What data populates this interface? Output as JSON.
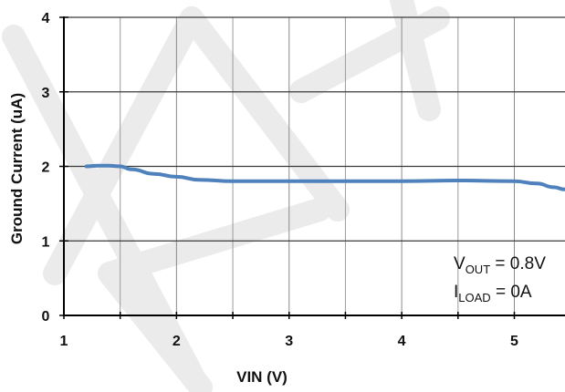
{
  "chart_data": {
    "type": "line",
    "title": "",
    "xlabel": "VIN (V)",
    "ylabel": "Ground Current  (uA)",
    "xlim": [
      1,
      5.45
    ],
    "ylim": [
      0,
      4
    ],
    "xticks": [
      1,
      2,
      3,
      4,
      5
    ],
    "yticks": [
      0,
      1,
      2,
      3,
      4
    ],
    "grid": true,
    "series": [
      {
        "color": "#4f81bd",
        "x": [
          1.2,
          1.3,
          1.4,
          1.5,
          1.6,
          1.8,
          2.0,
          2.2,
          2.5,
          3.0,
          3.5,
          4.0,
          4.5,
          5.0,
          5.2,
          5.35,
          5.45
        ],
        "y": [
          2.0,
          2.01,
          2.01,
          2.0,
          1.96,
          1.9,
          1.86,
          1.82,
          1.8,
          1.8,
          1.8,
          1.8,
          1.81,
          1.8,
          1.77,
          1.72,
          1.69
        ]
      }
    ],
    "annotations": [
      {
        "main": "V",
        "sub": "OUT",
        "rest": " = 0.8V"
      },
      {
        "main": "I",
        "sub": "LOAD",
        "rest": " = 0A"
      }
    ]
  }
}
